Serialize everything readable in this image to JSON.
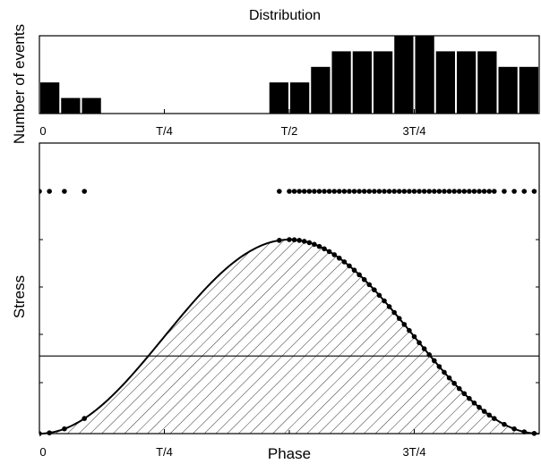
{
  "chart_data": [
    {
      "type": "bar",
      "title": "Distribution",
      "ylabel": "Number of events",
      "xlabel": "",
      "x_tick_labels": [
        "0",
        "T/4",
        "T/2",
        "3T/4"
      ],
      "x_tick_positions": [
        0,
        0.25,
        0.5,
        0.75
      ],
      "xlim": [
        0,
        1
      ],
      "ylim": [
        0,
        5
      ],
      "bin_width": 0.04167,
      "bin_starts": [
        0,
        0.04167,
        0.08333,
        0.125,
        0.16667,
        0.20833,
        0.25,
        0.29167,
        0.33333,
        0.375,
        0.41667,
        0.45833,
        0.5,
        0.54167,
        0.58333,
        0.625,
        0.66667,
        0.70833,
        0.75,
        0.79167,
        0.83333,
        0.875,
        0.91667,
        0.95833
      ],
      "values": [
        2,
        1,
        1,
        0,
        0,
        0,
        0,
        0,
        0,
        0,
        0,
        2,
        2,
        3,
        4,
        4,
        4,
        5,
        5,
        4,
        4,
        4,
        3,
        3
      ],
      "grid": false
    },
    {
      "type": "line",
      "xlabel": "Phase",
      "ylabel": "Stress",
      "x_tick_labels": [
        "0",
        "T/4",
        "3T/4"
      ],
      "x_tick_positions": [
        0,
        0.25,
        0.75
      ],
      "xlim": [
        0,
        1
      ],
      "ylim": [
        0,
        1
      ],
      "series": [
        {
          "role": "stress curve",
          "curve": "y = 0.5 - 0.5*cos(2*pi*x)",
          "fill": "diagonal hatching under curve"
        },
        {
          "role": "threshold line",
          "y": 0.4
        },
        {
          "role": "events on curve",
          "x": [
            0,
            0.02,
            0.05,
            0.09,
            0.48,
            0.5,
            0.51,
            0.52,
            0.53,
            0.54,
            0.55,
            0.56,
            0.57,
            0.58,
            0.59,
            0.6,
            0.61,
            0.62,
            0.63,
            0.64,
            0.65,
            0.66,
            0.67,
            0.68,
            0.69,
            0.7,
            0.71,
            0.72,
            0.73,
            0.74,
            0.75,
            0.76,
            0.77,
            0.78,
            0.79,
            0.8,
            0.81,
            0.82,
            0.83,
            0.84,
            0.85,
            0.86,
            0.87,
            0.88,
            0.89,
            0.9,
            0.91,
            0.93,
            0.95,
            0.97,
            0.99
          ]
        },
        {
          "role": "events row",
          "y": 1.0,
          "x": [
            0,
            0.02,
            0.05,
            0.09,
            0.48,
            0.5,
            0.51,
            0.52,
            0.53,
            0.54,
            0.55,
            0.56,
            0.57,
            0.58,
            0.59,
            0.6,
            0.61,
            0.62,
            0.63,
            0.64,
            0.65,
            0.66,
            0.67,
            0.68,
            0.69,
            0.7,
            0.71,
            0.72,
            0.73,
            0.74,
            0.75,
            0.76,
            0.77,
            0.78,
            0.79,
            0.8,
            0.81,
            0.82,
            0.83,
            0.84,
            0.85,
            0.86,
            0.87,
            0.88,
            0.89,
            0.9,
            0.91,
            0.93,
            0.95,
            0.97,
            0.99
          ]
        }
      ],
      "grid": false
    }
  ]
}
